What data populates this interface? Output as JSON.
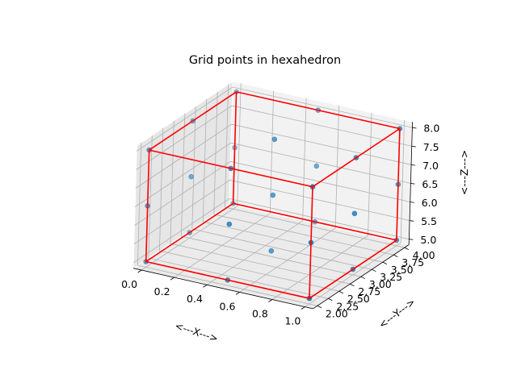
{
  "chart_data": {
    "type": "scatter3d",
    "title": "Grid points in hexahedron",
    "xlabel": "<---X--->",
    "ylabel": "<---Y--->",
    "zlabel": "<---Z--->",
    "xticks": [
      "0.0",
      "0.2",
      "0.4",
      "0.6",
      "0.8",
      "1.0"
    ],
    "yticks": [
      "2.00",
      "2.25",
      "2.50",
      "2.75",
      "3.00",
      "3.25",
      "3.50",
      "3.75",
      "4.00"
    ],
    "zticks": [
      "5.0",
      "5.5",
      "6.0",
      "6.5",
      "7.0",
      "7.5",
      "8.0"
    ],
    "xlim": [
      -0.05,
      1.05
    ],
    "ylim": [
      1.9,
      4.1
    ],
    "zlim": [
      4.85,
      8.15
    ],
    "grid": true,
    "point_color": "#1f77b4",
    "edge_color": "#ff0000",
    "series": [
      {
        "values": [
          [
            0,
            2,
            5
          ],
          [
            0.5,
            2,
            5
          ],
          [
            1,
            2,
            5
          ],
          [
            0,
            3,
            5
          ],
          [
            0.5,
            3,
            5
          ],
          [
            1,
            3,
            5
          ],
          [
            0,
            4,
            5
          ],
          [
            0.5,
            4,
            5
          ],
          [
            1,
            4,
            5
          ],
          [
            0,
            2,
            6.5
          ],
          [
            0.5,
            2,
            6.5
          ],
          [
            1,
            2,
            6.5
          ],
          [
            0,
            3,
            6.5
          ],
          [
            0.5,
            3,
            6.5
          ],
          [
            1,
            3,
            6.5
          ],
          [
            0,
            4,
            6.5
          ],
          [
            0.5,
            4,
            6.5
          ],
          [
            1,
            4,
            6.5
          ],
          [
            0,
            2,
            8
          ],
          [
            0.5,
            2,
            8
          ],
          [
            1,
            2,
            8
          ],
          [
            0,
            3,
            8
          ],
          [
            0.5,
            3,
            8
          ],
          [
            1,
            3,
            8
          ],
          [
            0,
            4,
            8
          ],
          [
            0.5,
            4,
            8
          ],
          [
            1,
            4,
            8
          ]
        ]
      }
    ],
    "edges": [
      [
        [
          0,
          2,
          5
        ],
        [
          1,
          2,
          5
        ]
      ],
      [
        [
          1,
          2,
          5
        ],
        [
          1,
          4,
          5
        ]
      ],
      [
        [
          1,
          4,
          5
        ],
        [
          0,
          4,
          5
        ]
      ],
      [
        [
          0,
          4,
          5
        ],
        [
          0,
          2,
          5
        ]
      ],
      [
        [
          0,
          2,
          8
        ],
        [
          1,
          2,
          8
        ]
      ],
      [
        [
          1,
          2,
          8
        ],
        [
          1,
          4,
          8
        ]
      ],
      [
        [
          1,
          4,
          8
        ],
        [
          0,
          4,
          8
        ]
      ],
      [
        [
          0,
          4,
          8
        ],
        [
          0,
          2,
          8
        ]
      ],
      [
        [
          0,
          2,
          5
        ],
        [
          0,
          2,
          8
        ]
      ],
      [
        [
          1,
          2,
          5
        ],
        [
          1,
          2,
          8
        ]
      ],
      [
        [
          1,
          4,
          5
        ],
        [
          1,
          4,
          8
        ]
      ],
      [
        [
          0,
          4,
          5
        ],
        [
          0,
          4,
          8
        ]
      ]
    ]
  }
}
